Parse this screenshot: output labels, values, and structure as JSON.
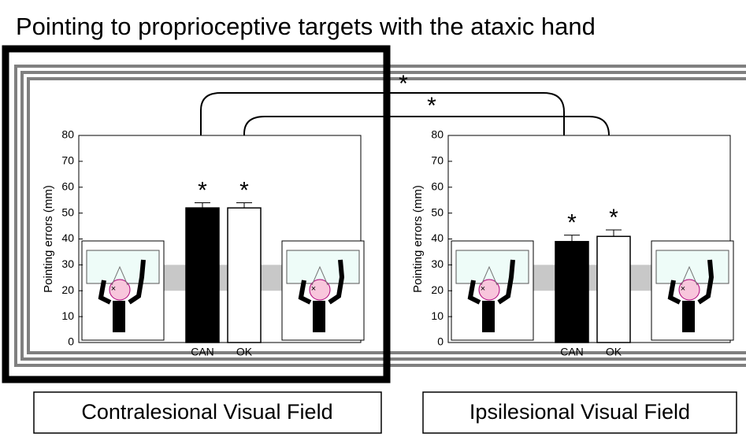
{
  "title": "Pointing to proprioceptive targets with the ataxic hand",
  "comparison_marks": [
    "*",
    "*"
  ],
  "chart_data": [
    {
      "type": "bar",
      "panel_label": "Contralesional Visual Field",
      "y_label": "Pointing errors (mm)",
      "categories": [
        "CAN",
        "OK"
      ],
      "values": [
        52,
        52
      ],
      "errors": [
        2,
        2
      ],
      "colors": [
        "#000000",
        "#ffffff"
      ],
      "significance": [
        "*",
        "*"
      ],
      "ylim": [
        0,
        80
      ],
      "yticks": [
        0,
        10,
        20,
        30,
        40,
        50,
        60,
        70,
        80
      ],
      "shaded_range": [
        20,
        30
      ]
    },
    {
      "type": "bar",
      "panel_label": "Ipsilesional Visual Field",
      "y_label": "Pointing errors (mm)",
      "categories": [
        "CAN",
        "OK"
      ],
      "values": [
        39,
        41
      ],
      "errors": [
        2.5,
        2.5
      ],
      "colors": [
        "#000000",
        "#ffffff"
      ],
      "significance": [
        "*",
        "*"
      ],
      "ylim": [
        0,
        80
      ],
      "yticks": [
        0,
        10,
        20,
        30,
        40,
        50,
        60,
        70,
        80
      ],
      "shaded_range": [
        20,
        30
      ]
    }
  ]
}
